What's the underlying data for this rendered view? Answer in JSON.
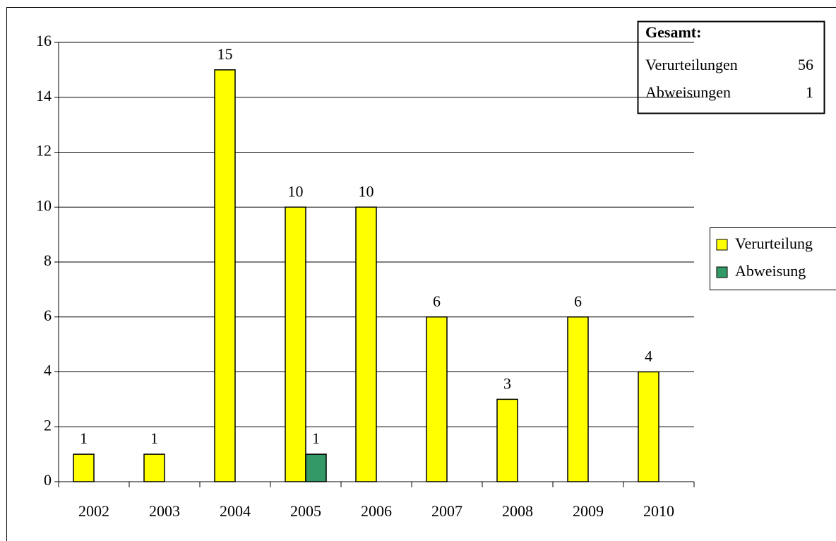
{
  "chart_data": {
    "type": "bar",
    "categories": [
      "2002",
      "2003",
      "2004",
      "2005",
      "2006",
      "2007",
      "2008",
      "2009",
      "2010"
    ],
    "series": [
      {
        "name": "Verurteilung",
        "color": "#ffff00",
        "values": [
          1,
          1,
          15,
          10,
          10,
          6,
          3,
          6,
          4
        ]
      },
      {
        "name": "Abweisung",
        "color": "#339966",
        "values": [
          null,
          null,
          null,
          1,
          null,
          null,
          null,
          null,
          null
        ]
      }
    ],
    "ylim": [
      0,
      16
    ],
    "yticks": [
      0,
      2,
      4,
      6,
      8,
      10,
      12,
      14,
      16
    ],
    "grid": true,
    "legend": "right",
    "annotation": {
      "title": "Gesamt:",
      "rows": [
        {
          "label": "Verurteilungen",
          "value": "56"
        },
        {
          "label": "Abweisungen",
          "value": "1"
        }
      ]
    }
  }
}
